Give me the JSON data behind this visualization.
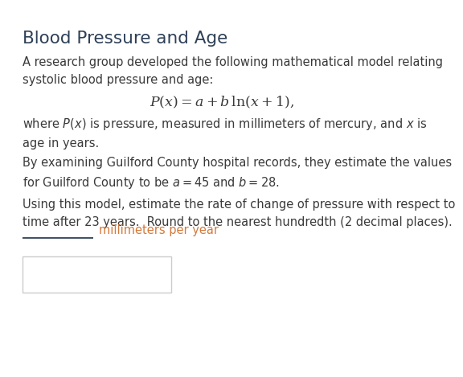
{
  "title": "Blood Pressure and Age",
  "title_color": "#2e4057",
  "title_fontsize": 15.5,
  "body_fontsize": 10.5,
  "text_color": "#3a3a3a",
  "accent_color": "#d4793a",
  "bg_color": "#ffffff",
  "para1": "A research group developed the following mathematical model relating\nsystolic blood pressure and age:",
  "formula": "$P(x) = a + b\\,\\ln(x + 1),$",
  "para2": "where $P(x)$ is pressure, measured in millimeters of mercury, and $x$ is\nage in years.",
  "para3": "By examining Guilford County hospital records, they estimate the values\nfor Guilford County to be $a = 45$ and $b = 28$.",
  "para4": "Using this model, estimate the rate of change of pressure with respect to\ntime after 23 years.  Round to the nearest hundredth (2 decimal places).",
  "blank_label": "millimeters per year",
  "underline_color": "#2e4057",
  "box_border_color": "#cccccc"
}
